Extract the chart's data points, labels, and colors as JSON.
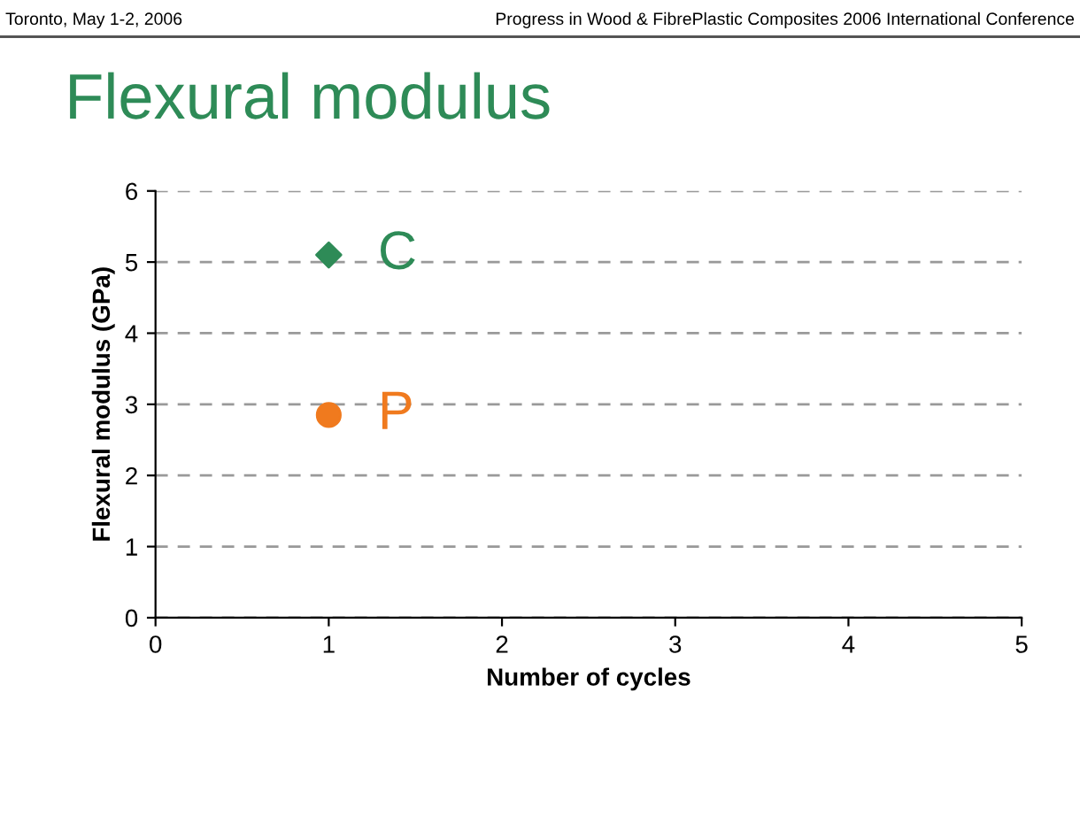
{
  "chart_data": {
    "type": "scatter",
    "title": "Flexural modulus",
    "xlabel": "Number of cycles",
    "ylabel": "Flexural modulus (GPa)",
    "annotations": [
      "Toronto, May 1-2, 2006",
      "Progress in Wood & FibrePlastic Composites 2006 International Conference"
    ],
    "series": [
      {
        "name": "C",
        "color": "#2e8b57",
        "marker": "diamond",
        "x": [
          1
        ],
        "values": [
          5.1
        ]
      },
      {
        "name": "P",
        "color": "#f07a1e",
        "marker": "circle",
        "x": [
          1
        ],
        "values": [
          2.85
        ]
      }
    ],
    "xlim": [
      0,
      5
    ],
    "xticks": [
      0,
      1,
      2,
      3,
      4,
      5
    ],
    "ylim": [
      0,
      6
    ],
    "yticks": [
      0,
      1,
      2,
      3,
      4,
      5,
      6
    ],
    "grid": "y"
  }
}
